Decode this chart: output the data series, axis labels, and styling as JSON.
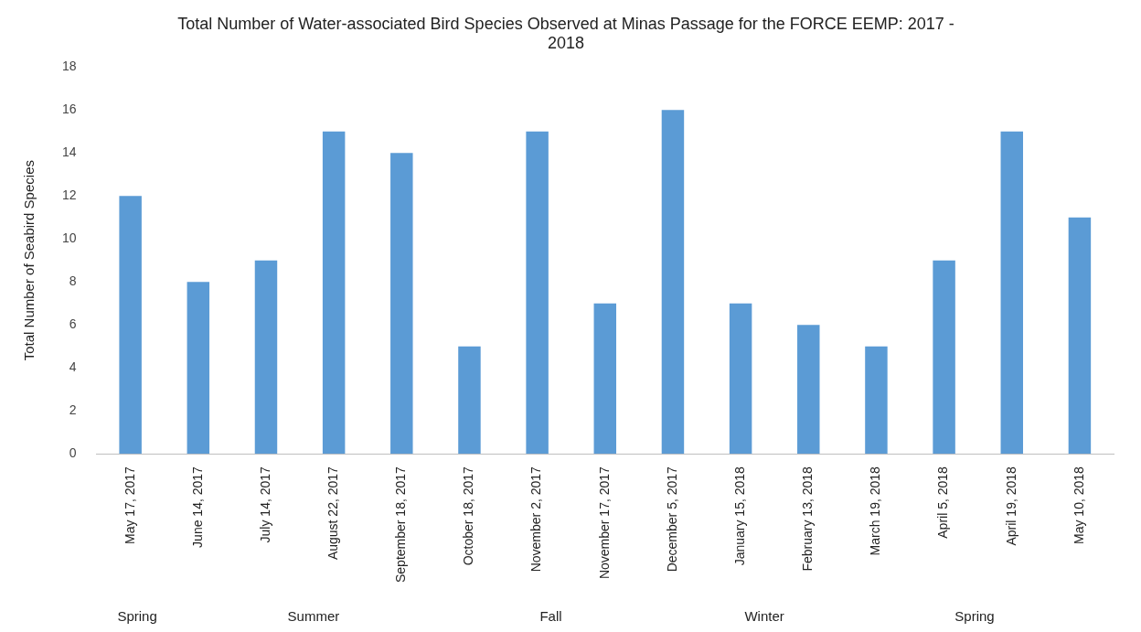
{
  "chart_data": {
    "type": "bar",
    "title": "Total Number of Water-associated Bird Species Observed at Minas Passage for the FORCE EEMP: 2017 - 2018",
    "ylabel": "Total Number of Seabird Species",
    "categories": [
      "May 17, 2017",
      "June 14, 2017",
      "July 14, 2017",
      "August 22, 2017",
      "September 18, 2017",
      "October 18, 2017",
      "November 2, 2017",
      "November 17, 2017",
      "December 5, 2017",
      "January 15, 2018",
      "February 13, 2018",
      "March 19, 2018",
      "April 5, 2018",
      "April 19, 2018",
      "May 10, 2018"
    ],
    "values": [
      12,
      8,
      9,
      15,
      14,
      5,
      15,
      7,
      16,
      7,
      6,
      5,
      9,
      15,
      11
    ],
    "color": "#5b9bd5",
    "ylim": [
      0,
      18
    ],
    "yticks": [
      0,
      2,
      4,
      6,
      8,
      10,
      12,
      14,
      16,
      18
    ],
    "annotations": [
      "Spring",
      "Summer",
      "Fall",
      "Winter",
      "Spring"
    ]
  }
}
